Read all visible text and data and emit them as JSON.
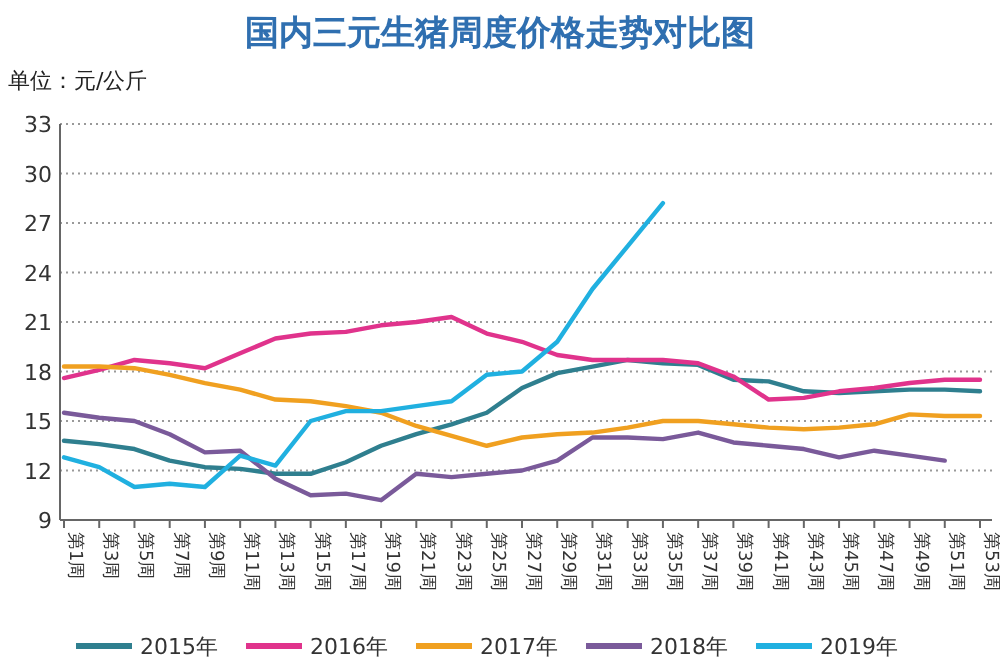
{
  "chart_data": {
    "type": "line",
    "title": "国内三元生猪周度价格走势对比图",
    "ylabel": "单位：元/公斤",
    "categories": [
      "第1周",
      "第3周",
      "第5周",
      "第7周",
      "第9周",
      "第11周",
      "第13周",
      "第15周",
      "第17周",
      "第19周",
      "第21周",
      "第23周",
      "第25周",
      "第27周",
      "第29周",
      "第31周",
      "第33周",
      "第35周",
      "第37周",
      "第39周",
      "第41周",
      "第43周",
      "第45周",
      "第47周",
      "第49周",
      "第51周",
      "第53周"
    ],
    "series": [
      {
        "name": "2015年",
        "color": "#2f7f8f",
        "values": [
          13.8,
          13.6,
          13.3,
          12.6,
          12.2,
          12.1,
          11.8,
          11.8,
          12.5,
          13.5,
          14.2,
          14.8,
          15.5,
          17.0,
          17.9,
          18.3,
          18.7,
          18.5,
          18.4,
          17.5,
          17.4,
          16.8,
          16.7,
          16.8,
          16.9,
          16.9,
          16.8
        ]
      },
      {
        "name": "2016年",
        "color": "#e0338c",
        "values": [
          17.6,
          18.1,
          18.7,
          18.5,
          18.2,
          19.1,
          20.0,
          20.3,
          20.4,
          20.8,
          21.0,
          21.3,
          20.3,
          19.8,
          19.0,
          18.7,
          18.7,
          18.7,
          18.5,
          17.7,
          16.3,
          16.4,
          16.8,
          17.0,
          17.3,
          17.5,
          17.5
        ]
      },
      {
        "name": "2017年",
        "color": "#f0a020",
        "values": [
          18.3,
          18.3,
          18.2,
          17.8,
          17.3,
          16.9,
          16.3,
          16.2,
          15.9,
          15.5,
          14.7,
          14.1,
          13.5,
          14.0,
          14.2,
          14.3,
          14.6,
          15.0,
          15.0,
          14.8,
          14.6,
          14.5,
          14.6,
          14.8,
          15.4,
          15.3,
          15.3
        ]
      },
      {
        "name": "2018年",
        "color": "#7a5a9a",
        "values": [
          15.5,
          15.2,
          15.0,
          14.2,
          13.1,
          13.2,
          11.5,
          10.5,
          10.6,
          10.2,
          11.8,
          11.6,
          11.8,
          12.0,
          12.6,
          14.0,
          14.0,
          13.9,
          14.3,
          13.7,
          13.5,
          13.3,
          12.8,
          13.2,
          12.9,
          12.6,
          null
        ]
      },
      {
        "name": "2019年",
        "color": "#20b0e0",
        "values": [
          12.8,
          12.2,
          11.0,
          11.2,
          11.0,
          12.9,
          12.3,
          15.0,
          15.6,
          15.6,
          15.9,
          16.2,
          17.8,
          18.0,
          19.8,
          23.0,
          25.6,
          28.2,
          null,
          null,
          null,
          null,
          null,
          null,
          null,
          null,
          null
        ]
      }
    ],
    "ylim": [
      9,
      33
    ],
    "yticks": [
      9,
      12,
      15,
      18,
      21,
      24,
      27,
      30,
      33
    ],
    "grid": "y",
    "legend": "bottom"
  }
}
